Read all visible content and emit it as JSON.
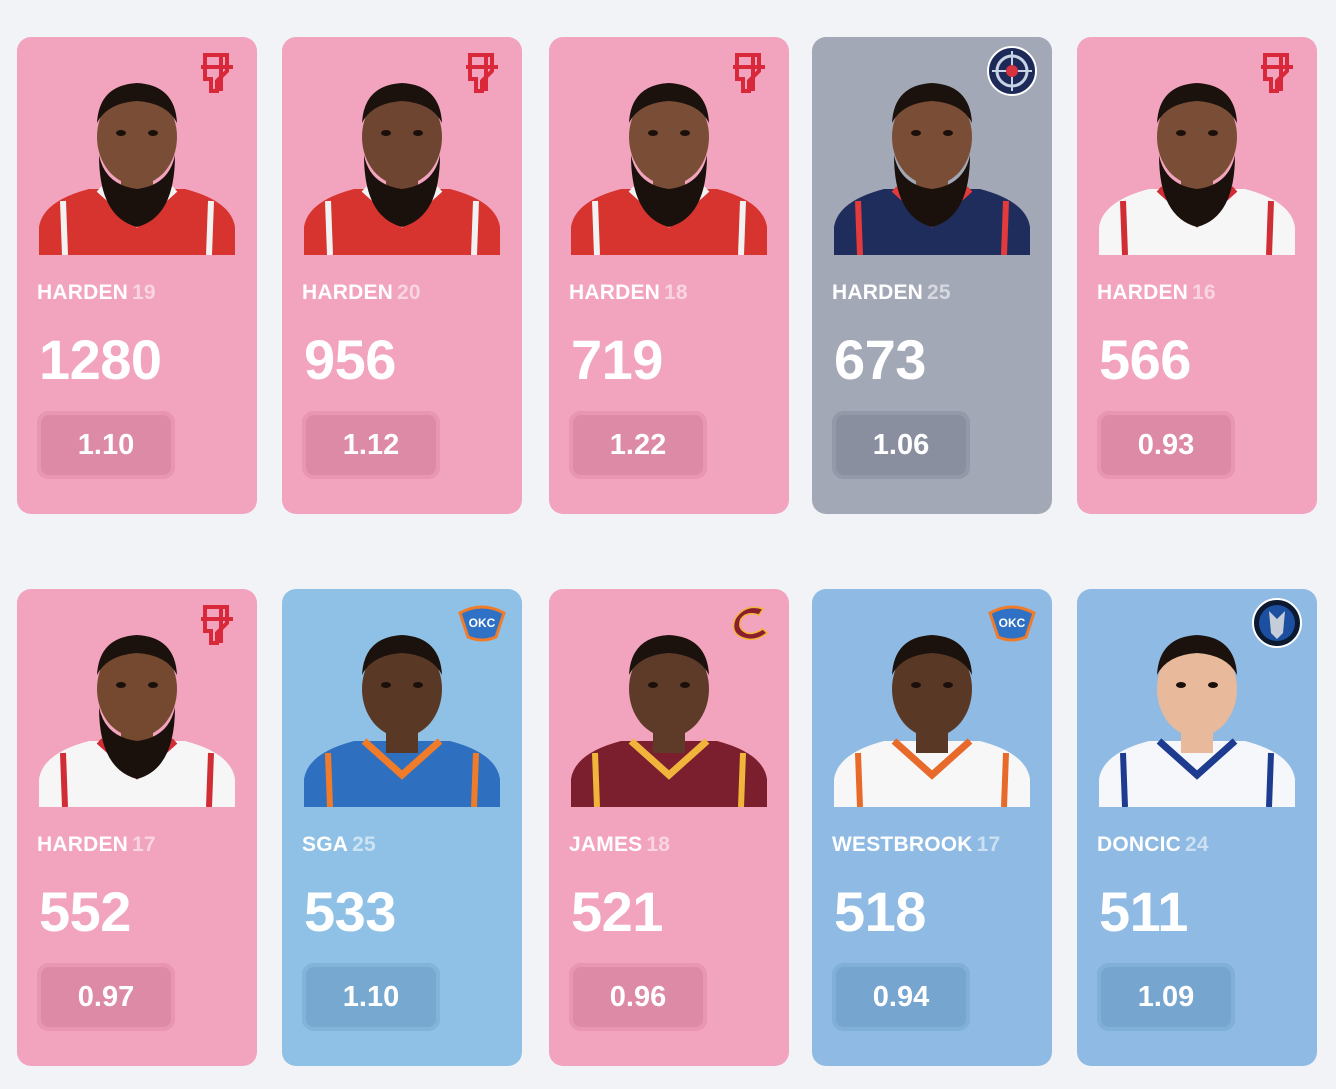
{
  "cards": [
    {
      "name": "HARDEN",
      "year": "19",
      "value": "1280",
      "ratio": "1.10",
      "team": "rockets",
      "jersey": "red",
      "skin": "#7a4e36",
      "beard": true
    },
    {
      "name": "HARDEN",
      "year": "20",
      "value": "956",
      "ratio": "1.12",
      "team": "rockets",
      "jersey": "red",
      "skin": "#6e4530",
      "beard": true
    },
    {
      "name": "HARDEN",
      "year": "18",
      "value": "719",
      "ratio": "1.22",
      "team": "rockets",
      "jersey": "red",
      "skin": "#7a4e36",
      "beard": true
    },
    {
      "name": "HARDEN",
      "year": "25",
      "value": "673",
      "ratio": "1.06",
      "team": "clippers",
      "jersey": "navy",
      "skin": "#7a4e36",
      "beard": true
    },
    {
      "name": "HARDEN",
      "year": "16",
      "value": "566",
      "ratio": "0.93",
      "team": "rockets",
      "jersey": "white-red",
      "skin": "#7a4e36",
      "beard": true
    },
    {
      "name": "HARDEN",
      "year": "17",
      "value": "552",
      "ratio": "0.97",
      "team": "rockets",
      "jersey": "white-red",
      "skin": "#74492f",
      "beard": true
    },
    {
      "name": "SGA",
      "year": "25",
      "value": "533",
      "ratio": "1.10",
      "team": "thunder",
      "jersey": "blue",
      "skin": "#5a3826",
      "beard": false
    },
    {
      "name": "JAMES",
      "year": "18",
      "value": "521",
      "ratio": "0.96",
      "team": "cavaliers",
      "jersey": "wine",
      "skin": "#5e3b29",
      "beard": false
    },
    {
      "name": "WESTBROOK",
      "year": "17",
      "value": "518",
      "ratio": "0.94",
      "team": "thunder",
      "jersey": "white-orange",
      "skin": "#5a3826",
      "beard": false
    },
    {
      "name": "DONCIC",
      "year": "24",
      "value": "511",
      "ratio": "1.09",
      "team": "mavericks",
      "jersey": "white-blue",
      "skin": "#e8b99a",
      "beard": false
    }
  ]
}
